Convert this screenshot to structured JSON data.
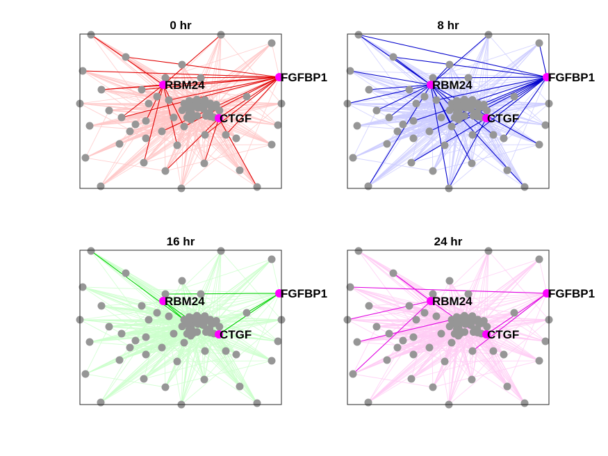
{
  "panels": [
    {
      "title": "0 hr",
      "bg_edge_color": "#ffc8c8",
      "highlight_edge_color": "#e00000"
    },
    {
      "title": "8 hr",
      "bg_edge_color": "#ccccff",
      "highlight_edge_color": "#0000cc"
    },
    {
      "title": "16 hr",
      "bg_edge_color": "#ccffcc",
      "highlight_edge_color": "#00d000"
    },
    {
      "title": "24 hr",
      "bg_edge_color": "#ffccf5",
      "highlight_edge_color": "#e000e0"
    }
  ],
  "labels": {
    "rbm24": "RBM24",
    "ctgf": "CTGF",
    "fgfbp1": "FGFBP1"
  },
  "colors": {
    "node": "#969696",
    "highlight_node": "#ff00ff",
    "frame": "#262626"
  }
}
